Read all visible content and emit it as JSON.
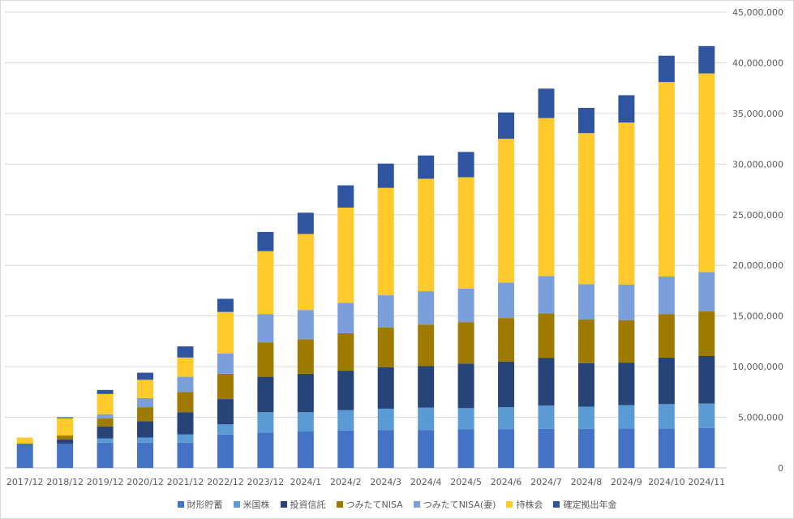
{
  "chart_data": {
    "type": "bar",
    "stacked": true,
    "grid": true,
    "legend_position": "bottom",
    "y_axis_position": "right",
    "ylim": [
      0,
      45000000
    ],
    "y_ticks": [
      "0",
      "5,000,000",
      "10,000,000",
      "15,000,000",
      "20,000,000",
      "25,000,000",
      "30,000,000",
      "35,000,000",
      "40,000,000",
      "45,000,000"
    ],
    "categories": [
      "2017/12",
      "2018/12",
      "2019/12",
      "2020/12",
      "2021/12",
      "2022/12",
      "2023/12",
      "2024/1",
      "2024/2",
      "2024/3",
      "2024/4",
      "2024/5",
      "2024/6",
      "2024/7",
      "2024/8",
      "2024/9",
      "2024/10",
      "2024/11"
    ],
    "series": [
      {
        "name": "財形貯蓄",
        "color": "#4472C4",
        "values": [
          2400000,
          2400000,
          2500000,
          2500000,
          2500000,
          3300000,
          3500000,
          3600000,
          3700000,
          3750000,
          3750000,
          3800000,
          3800000,
          3850000,
          3850000,
          3900000,
          3900000,
          3950000
        ]
      },
      {
        "name": "米国株",
        "color": "#5B9BD5",
        "values": [
          0,
          0,
          400000,
          500000,
          800000,
          1000000,
          2000000,
          1900000,
          2000000,
          2100000,
          2200000,
          2100000,
          2200000,
          2300000,
          2200000,
          2300000,
          2400000,
          2400000
        ]
      },
      {
        "name": "投資信託",
        "color": "#264478",
        "values": [
          0,
          400000,
          1200000,
          1600000,
          2200000,
          2500000,
          3500000,
          3800000,
          3900000,
          4100000,
          4100000,
          4400000,
          4500000,
          4700000,
          4300000,
          4200000,
          4600000,
          4700000
        ]
      },
      {
        "name": "つみたてNISA",
        "color": "#9E7A00",
        "values": [
          0,
          400000,
          800000,
          1400000,
          2000000,
          2500000,
          3400000,
          3400000,
          3700000,
          3900000,
          4100000,
          4100000,
          4300000,
          4400000,
          4300000,
          4200000,
          4300000,
          4400000
        ]
      },
      {
        "name": "つみたてNISA(妻)",
        "color": "#7B9FDB",
        "values": [
          0,
          0,
          400000,
          900000,
          1500000,
          2000000,
          2800000,
          2900000,
          3000000,
          3200000,
          3300000,
          3300000,
          3500000,
          3700000,
          3500000,
          3500000,
          3700000,
          3900000
        ]
      },
      {
        "name": "持株会",
        "color": "#FFCA2C",
        "values": [
          600000,
          1700000,
          2000000,
          1800000,
          1900000,
          4100000,
          6200000,
          7500000,
          9400000,
          10600000,
          11100000,
          11000000,
          14200000,
          15600000,
          14900000,
          16000000,
          19200000,
          19600000
        ]
      },
      {
        "name": "確定拠出年金",
        "color": "#2F55A0",
        "values": [
          0,
          100000,
          400000,
          700000,
          1100000,
          1300000,
          1900000,
          2100000,
          2200000,
          2400000,
          2300000,
          2500000,
          2600000,
          2900000,
          2500000,
          2700000,
          2600000,
          2700000
        ]
      }
    ]
  }
}
